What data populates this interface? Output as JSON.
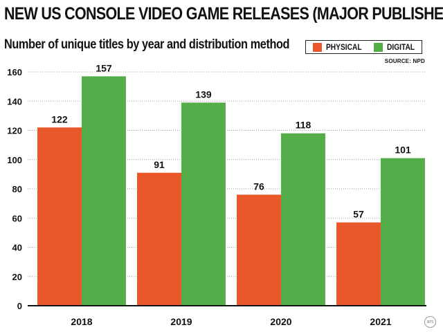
{
  "title": "NEW US CONSOLE VIDEO GAME RELEASES (MAJOR PUBLISHERS)",
  "subtitle": "Number of unique titles by year and distribution method",
  "source": "SOURCE: NPD",
  "watermark": "ars",
  "colors": {
    "physical": "#e8582a",
    "digital": "#54ad48",
    "grid": "#9a9a9a",
    "axis": "#111111"
  },
  "legend": {
    "physical": "PHYSICAL",
    "digital": "DIGITAL"
  },
  "chart_data": {
    "type": "bar",
    "categories": [
      "2018",
      "2019",
      "2020",
      "2021"
    ],
    "series": [
      {
        "name": "PHYSICAL",
        "values": [
          122,
          91,
          76,
          57
        ]
      },
      {
        "name": "DIGITAL",
        "values": [
          157,
          139,
          118,
          101
        ]
      }
    ],
    "ylim": [
      0,
      160
    ],
    "yticks": [
      0,
      20,
      40,
      60,
      80,
      100,
      120,
      140,
      160
    ],
    "grid": true,
    "legend_position": "top-right",
    "data_labels": true
  }
}
